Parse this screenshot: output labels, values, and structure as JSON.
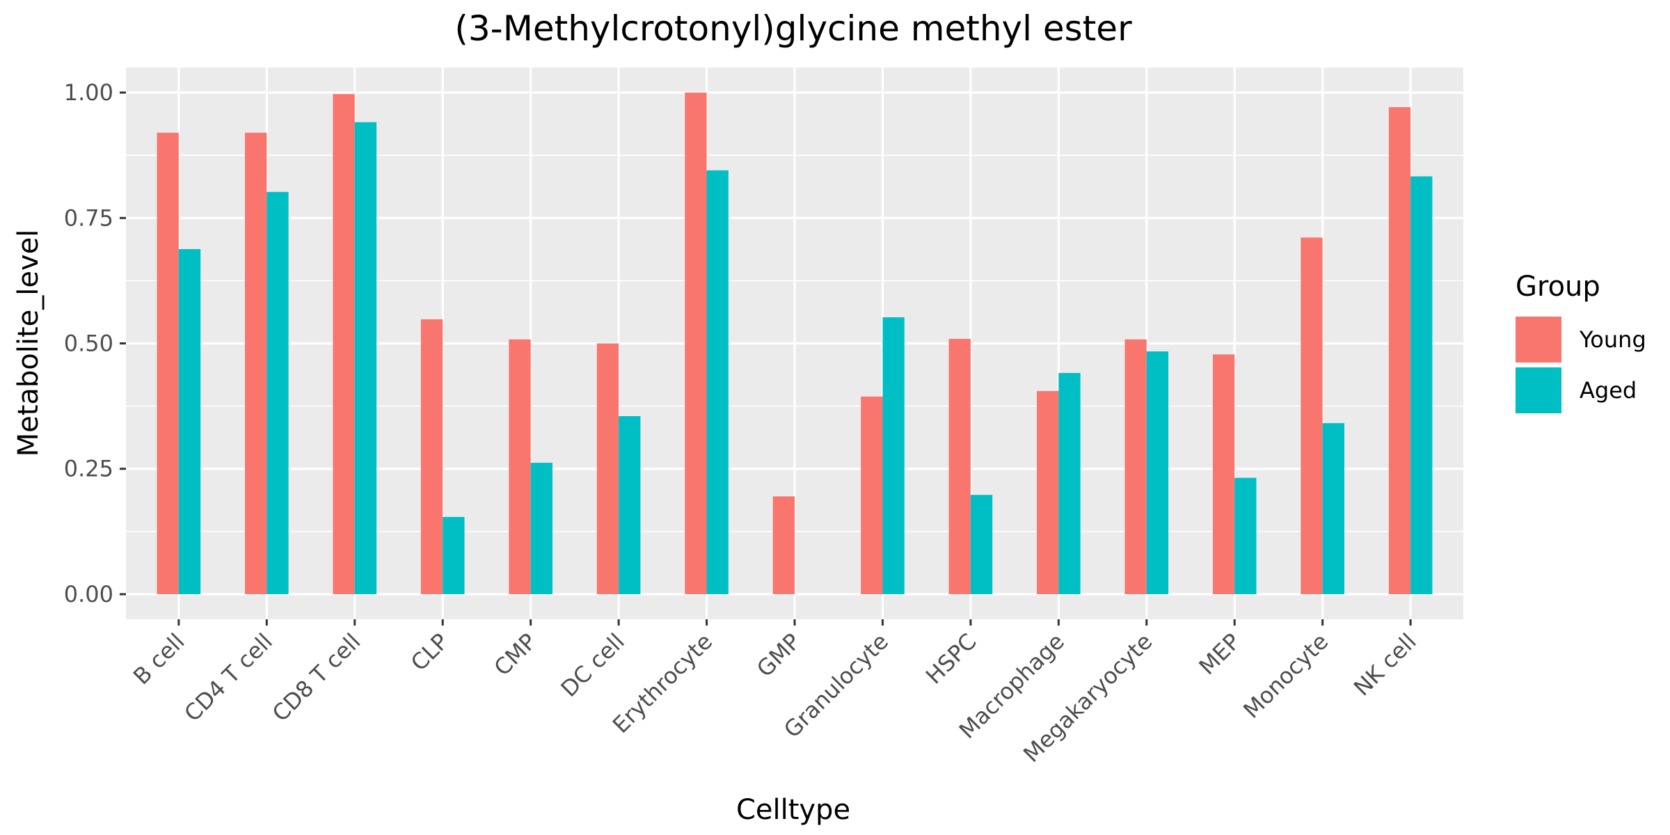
{
  "chart_data": {
    "type": "bar",
    "title": "(3-Methylcrotonyl)glycine methyl ester",
    "xlabel": "Celltype",
    "ylabel": "Metabolite_level",
    "ylim": [
      -0.05,
      1.05
    ],
    "yticks": [
      0.0,
      0.25,
      0.5,
      0.75,
      1.0
    ],
    "ytick_labels": [
      "0.00",
      "0.25",
      "0.50",
      "0.75",
      "1.00"
    ],
    "grid": true,
    "legend_position": "right",
    "legend_title": "Group",
    "categories": [
      "B cell",
      "CD4 T cell",
      "CD8 T cell",
      "CLP",
      "CMP",
      "DC cell",
      "Erythrocyte",
      "GMP",
      "Granulocyte",
      "HSPC",
      "Macrophage",
      "Megakaryocyte",
      "MEP",
      "Monocyte",
      "NK cell"
    ],
    "series": [
      {
        "name": "Young",
        "color": "#F8766D",
        "values": [
          0.92,
          0.92,
          0.997,
          0.548,
          0.508,
          0.5,
          1.0,
          0.195,
          0.394,
          0.509,
          0.405,
          0.508,
          0.478,
          0.711,
          0.971
        ]
      },
      {
        "name": "Aged",
        "color": "#00BFC4",
        "values": [
          0.688,
          0.802,
          0.941,
          0.154,
          0.262,
          0.355,
          0.845,
          0.0,
          0.552,
          0.198,
          0.441,
          0.484,
          0.232,
          0.341,
          0.833
        ]
      }
    ]
  }
}
